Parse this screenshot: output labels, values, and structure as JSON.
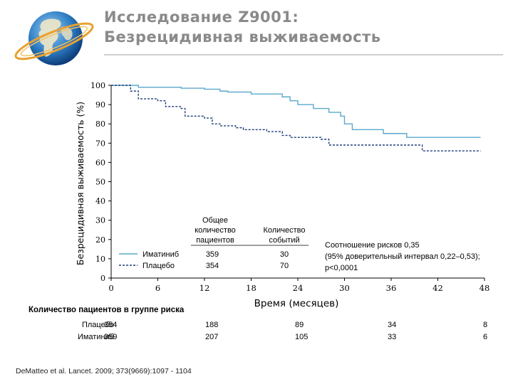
{
  "title": {
    "line1": "Исследование Z9001:",
    "line2": "Безрецидивная выживаемость"
  },
  "colors": {
    "imatinib": "#5aa8cc",
    "placebo": "#1f3f7a",
    "title": "#8a8a8a",
    "axis_tick": "#000000"
  },
  "chart_data": {
    "type": "line",
    "title": "",
    "xlabel": "Время (месяцев)",
    "ylabel": "Безрецидивная выживаемость (%)",
    "xlim": [
      0,
      48
    ],
    "ylim": [
      0,
      100
    ],
    "xticks": [
      0,
      6,
      12,
      18,
      24,
      30,
      36,
      42,
      48
    ],
    "yticks": [
      0,
      10,
      20,
      30,
      40,
      50,
      60,
      70,
      80,
      90,
      100
    ],
    "series": [
      {
        "name": "Иматиниб",
        "style": "solid",
        "patients": "359",
        "events": "30",
        "x": [
          0,
          2,
          3.5,
          6,
          9,
          12,
          14,
          15,
          18,
          22,
          23,
          24,
          26,
          28,
          29.5,
          30,
          31,
          35,
          38,
          42,
          47.5
        ],
        "y": [
          100,
          100,
          99,
          99,
          98.5,
          98,
          97,
          96.5,
          95.5,
          94,
          92,
          90,
          88,
          86,
          84,
          80,
          77,
          75,
          73,
          73,
          73
        ]
      },
      {
        "name": "Плацебо",
        "style": "dashed",
        "patients": "354",
        "events": "70",
        "x": [
          0,
          1.5,
          2.5,
          3.5,
          6,
          7,
          9,
          9.5,
          12,
          13,
          14,
          16,
          17,
          20,
          22,
          23,
          27,
          28,
          38,
          40,
          47.5
        ],
        "y": [
          100,
          100,
          97,
          93,
          92,
          89,
          88,
          84,
          83,
          80,
          79,
          78,
          77,
          76,
          74,
          73,
          72,
          69,
          69,
          66,
          66
        ]
      }
    ],
    "legend_headers": {
      "patients": "Общее количество пациентов",
      "events": "Количество событий"
    },
    "annotation": {
      "line1": "Соотношение рисков 0,35",
      "line2": "(95% доверительный интервал 0,22–0,53);",
      "line3": "p<0,0001"
    }
  },
  "risk_table": {
    "header": "Количество пациентов в группе риска",
    "columns": [
      0,
      12,
      24,
      36,
      48
    ],
    "rows": [
      {
        "label": "Плацебо",
        "values": [
          "354",
          "188",
          "89",
          "34",
          "8"
        ]
      },
      {
        "label": "Иматиниб",
        "values": [
          "359",
          "207",
          "105",
          "33",
          "6"
        ]
      }
    ]
  },
  "citation": "DeMatteo et al. Lancet. 2009; 373(9669):1097 - 1104"
}
